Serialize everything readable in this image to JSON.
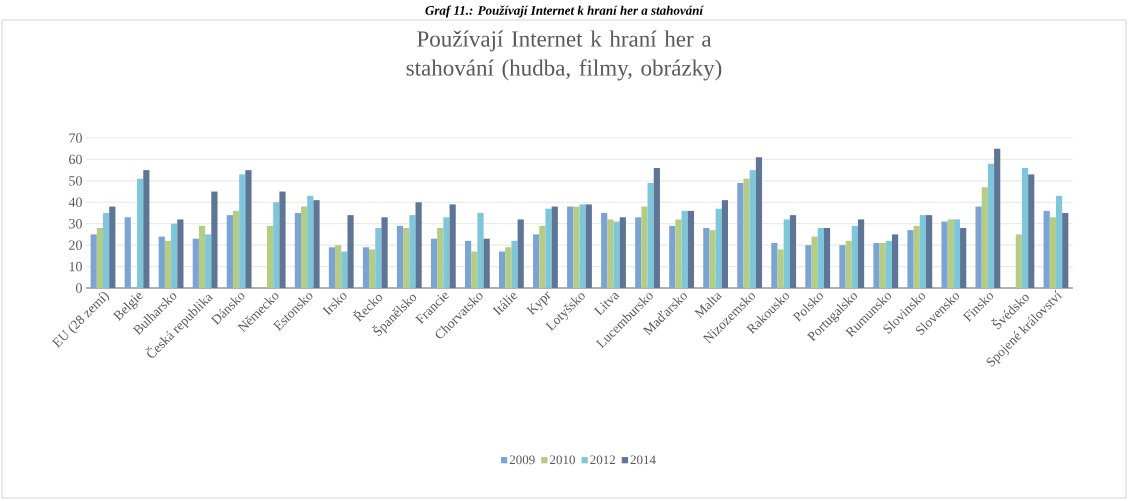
{
  "chart_data": {
    "type": "bar",
    "title": "Používají Internet k hraní her a stahování (hudba, filmy, obrázky)",
    "annotations": [
      "Graf 11.: Používají Internet k hraní her a stahování"
    ],
    "categories": [
      "EU (28 zemí)",
      "Belgie",
      "Bulharsko",
      "Česká republika",
      "Dánsko",
      "Německo",
      "Estonsko",
      "Irsko",
      "Řecko",
      "Španělsko",
      "Francie",
      "Chorvatsko",
      "Itálie",
      "Kypr",
      "Lotyšsko",
      "Litva",
      "Lucembursko",
      "Maďarsko",
      "Malta",
      "Nizozemsko",
      "Rakousko",
      "Polsko",
      "Portugalsko",
      "Rumunsko",
      "Slovinsko",
      "Slovensko",
      "Finsko",
      "Švédsko",
      "Spojené království"
    ],
    "series": [
      {
        "name": "2009",
        "color": "#7ba3d4",
        "values": [
          25,
          33,
          24,
          23,
          34,
          null,
          35,
          19,
          19,
          29,
          23,
          22,
          17,
          25,
          38,
          35,
          33,
          29,
          28,
          49,
          21,
          20,
          20,
          21,
          27,
          31,
          38,
          null,
          36
        ]
      },
      {
        "name": "2010",
        "color": "#b5cc85",
        "values": [
          28,
          null,
          22,
          29,
          36,
          29,
          38,
          20,
          18,
          28,
          28,
          17,
          19,
          29,
          38,
          32,
          38,
          32,
          27,
          51,
          18,
          24,
          22,
          21,
          29,
          32,
          47,
          25,
          33
        ]
      },
      {
        "name": "2012",
        "color": "#7ec6d9",
        "values": [
          35,
          51,
          30,
          25,
          53,
          40,
          43,
          17,
          28,
          34,
          33,
          35,
          22,
          37,
          39,
          31,
          49,
          36,
          37,
          55,
          32,
          28,
          29,
          22,
          34,
          32,
          58,
          56,
          43
        ]
      },
      {
        "name": "2014",
        "color": "#5f7595",
        "values": [
          38,
          55,
          32,
          45,
          55,
          45,
          41,
          34,
          33,
          40,
          39,
          23,
          32,
          38,
          39,
          33,
          56,
          36,
          41,
          61,
          34,
          28,
          32,
          25,
          34,
          28,
          65,
          53,
          35
        ]
      }
    ],
    "ylim": [
      0,
      70
    ],
    "yticks": [
      0,
      10,
      20,
      30,
      40,
      50,
      60,
      70
    ],
    "grid": "y",
    "legend": "bottom"
  }
}
